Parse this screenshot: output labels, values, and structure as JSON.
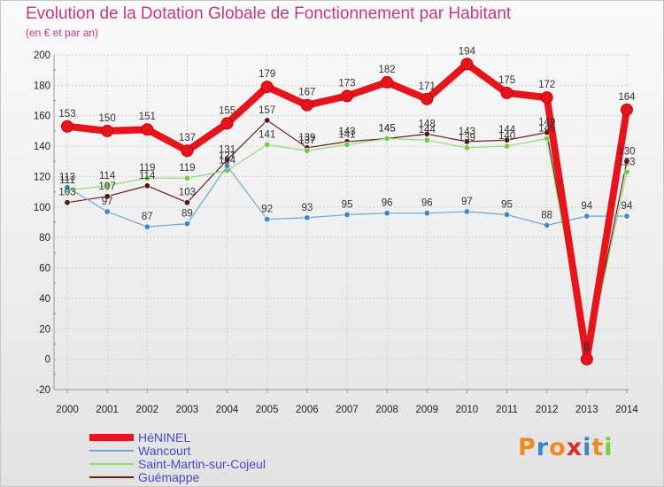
{
  "title": "Evolution de la Dotation Globale de Fonctionnement par Habitant",
  "subtitle": "(en € et par an)",
  "logo": {
    "text": "Proxiti",
    "letters": [
      "P",
      "r",
      "o",
      "x",
      "i",
      "t",
      "i"
    ],
    "colors": [
      "#f08a1c",
      "#3a86c8",
      "#f08a1c",
      "#d42e2e",
      "#3a86c8",
      "#f08a1c",
      "#8cc63f"
    ]
  },
  "chart_data": {
    "type": "line",
    "title": "Evolution de la Dotation Globale de Fonctionnement par Habitant",
    "subtitle": "(en € et par an)",
    "xlabel": "",
    "ylabel": "",
    "ylim": [
      -20,
      200
    ],
    "y_ticks": [
      -20,
      0,
      20,
      40,
      60,
      80,
      100,
      120,
      140,
      160,
      180,
      200
    ],
    "grid": true,
    "legend_position": "bottom-left",
    "categories": [
      "2000",
      "2001",
      "2002",
      "2003",
      "2004",
      "2005",
      "2006",
      "2007",
      "2008",
      "2009",
      "2010",
      "2011",
      "2012",
      "2013",
      "2014"
    ],
    "series": [
      {
        "name": "Guémappe",
        "color": "#6b1a1a",
        "marker": "#5a1414",
        "width": 1.2,
        "values": [
          103,
          107,
          114,
          103,
          131,
          157,
          139,
          143,
          145,
          148,
          143,
          144,
          149,
          0,
          130
        ],
        "labels": [
          "103",
          "107",
          "114",
          "103",
          "131",
          "157",
          "139",
          "143",
          "145",
          "148",
          "143",
          "144",
          "149",
          "0",
          "130"
        ]
      },
      {
        "name": "Saint-Martin-sur-Cojeul",
        "color": "#90dc70",
        "marker": "#6ccc44",
        "width": 1.2,
        "values": [
          111,
          114,
          119,
          119,
          124,
          141,
          137,
          141,
          145,
          144,
          139,
          140,
          145,
          0,
          123
        ],
        "labels": [
          "111",
          "114",
          "119",
          "119",
          "124",
          "141",
          "137",
          "141",
          "145",
          "144",
          "139",
          "140",
          "145",
          "0",
          "123"
        ]
      },
      {
        "name": "Wancourt",
        "color": "#6aa6d8",
        "marker": "#3e86c6",
        "width": 1.2,
        "values": [
          113,
          97,
          87,
          89,
          127,
          92,
          93,
          95,
          96,
          96,
          97,
          95,
          88,
          94,
          94
        ],
        "labels": [
          "113",
          "97",
          "87",
          "89",
          "127",
          "92",
          "93",
          "95",
          "96",
          "96",
          "97",
          "95",
          "88",
          "94",
          "94"
        ]
      },
      {
        "name": "HéNINEL",
        "color": "#e8141c",
        "marker": "#e8141c",
        "width": 8,
        "values": [
          153,
          150,
          151,
          137,
          155,
          179,
          167,
          173,
          182,
          171,
          194,
          175,
          172,
          0,
          164
        ],
        "labels": [
          "153",
          "150",
          "151",
          "137",
          "155",
          "179",
          "167",
          "173",
          "182",
          "171",
          "194",
          "175",
          "172",
          "0",
          "164"
        ]
      }
    ]
  }
}
